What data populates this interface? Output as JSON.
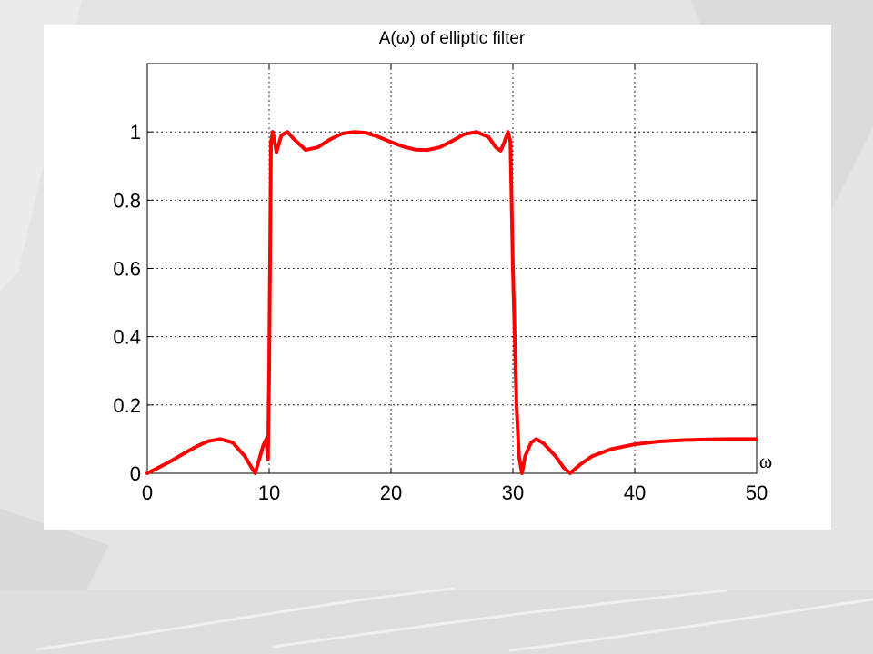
{
  "slide": {
    "background_color": "#e4e4e4",
    "panel_color": "#ffffff"
  },
  "chart_data": {
    "type": "line",
    "title": "A(ω) of elliptic filter",
    "xlabel": "ω",
    "ylabel": "",
    "xlim": [
      0,
      50
    ],
    "ylim": [
      0,
      1.2
    ],
    "grid": true,
    "x_ticks": [
      0,
      10,
      20,
      30,
      40,
      50
    ],
    "x_tick_labels": [
      "0",
      "10",
      "20",
      "30",
      "40",
      "50"
    ],
    "y_ticks": [
      0,
      0.2,
      0.4,
      0.6,
      0.8,
      1
    ],
    "y_tick_labels": [
      "0",
      "0.2",
      "0.4",
      "0.6",
      "0.8",
      "1"
    ],
    "series": [
      {
        "color": "#ff0000",
        "points": [
          [
            0,
            0
          ],
          [
            1,
            0.018
          ],
          [
            2,
            0.037
          ],
          [
            3,
            0.058
          ],
          [
            4,
            0.078
          ],
          [
            5,
            0.094
          ],
          [
            6,
            0.1
          ],
          [
            7,
            0.09
          ],
          [
            8,
            0.05
          ],
          [
            8.5,
            0.02
          ],
          [
            8.85,
            0
          ],
          [
            9.1,
            0.03
          ],
          [
            9.5,
            0.08
          ],
          [
            9.75,
            0.1
          ],
          [
            9.9,
            0.04
          ],
          [
            10.0,
            0.3
          ],
          [
            10.15,
            0.97
          ],
          [
            10.3,
            1.0
          ],
          [
            10.6,
            0.94
          ],
          [
            11.0,
            0.99
          ],
          [
            11.5,
            1.0
          ],
          [
            12.0,
            0.98
          ],
          [
            13.0,
            0.947
          ],
          [
            14.0,
            0.955
          ],
          [
            15.0,
            0.978
          ],
          [
            16.0,
            0.995
          ],
          [
            17.0,
            1.0
          ],
          [
            18.0,
            0.997
          ],
          [
            19.0,
            0.985
          ],
          [
            20.0,
            0.97
          ],
          [
            21.0,
            0.957
          ],
          [
            22.0,
            0.948
          ],
          [
            23.0,
            0.947
          ],
          [
            24.0,
            0.955
          ],
          [
            25.0,
            0.973
          ],
          [
            26.0,
            0.993
          ],
          [
            27.0,
            1.0
          ],
          [
            28.0,
            0.985
          ],
          [
            28.6,
            0.955
          ],
          [
            29.0,
            0.945
          ],
          [
            29.3,
            0.97
          ],
          [
            29.6,
            1.0
          ],
          [
            29.8,
            0.97
          ],
          [
            30.0,
            0.6
          ],
          [
            30.3,
            0.2
          ],
          [
            30.5,
            0.05
          ],
          [
            30.75,
            0
          ],
          [
            31.0,
            0.05
          ],
          [
            31.5,
            0.09
          ],
          [
            31.9,
            0.1
          ],
          [
            32.5,
            0.088
          ],
          [
            33.5,
            0.05
          ],
          [
            34.2,
            0.015
          ],
          [
            34.7,
            0
          ],
          [
            35.5,
            0.025
          ],
          [
            36.5,
            0.05
          ],
          [
            38.0,
            0.07
          ],
          [
            40.0,
            0.085
          ],
          [
            42.0,
            0.093
          ],
          [
            44.0,
            0.097
          ],
          [
            46.0,
            0.099
          ],
          [
            48.0,
            0.1
          ],
          [
            50.0,
            0.1
          ]
        ]
      }
    ]
  }
}
